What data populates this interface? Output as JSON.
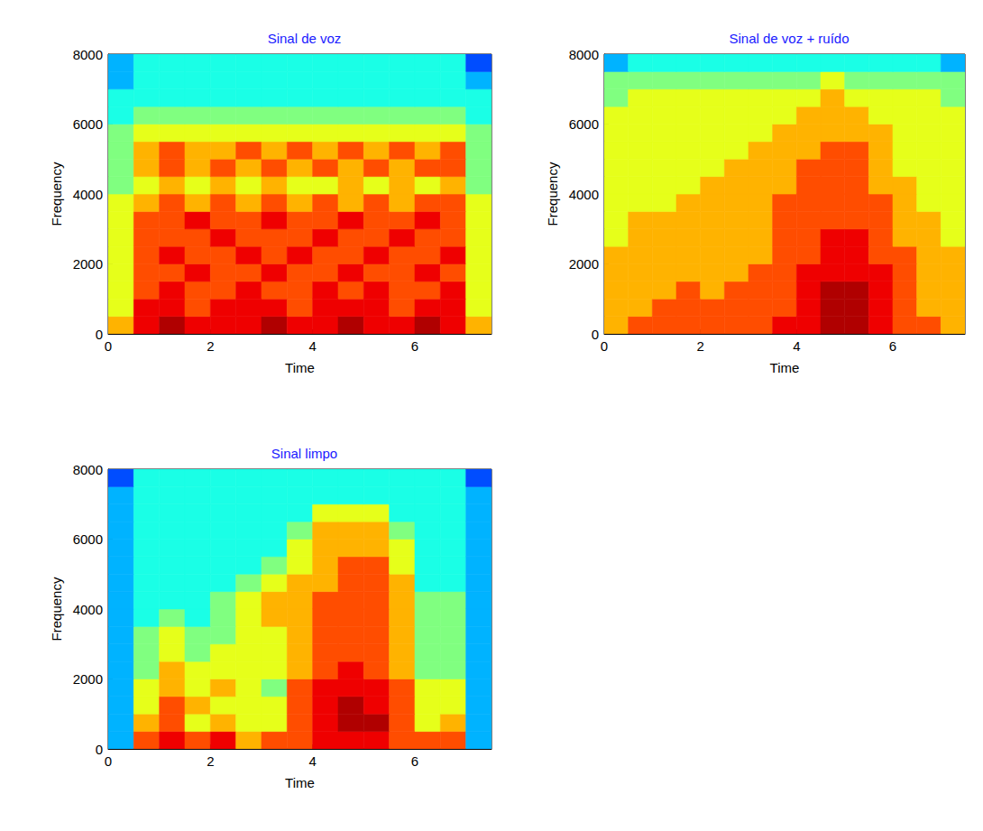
{
  "chart_data": [
    {
      "type": "heatmap",
      "title": "Sinal de voz",
      "xlabel": "Time",
      "ylabel": "Frequency",
      "xlim": [
        0,
        7.5
      ],
      "xticks": [
        0,
        2,
        4,
        6
      ],
      "ylim": [
        0,
        8000
      ],
      "yticks": [
        0,
        2000,
        4000,
        6000,
        8000
      ],
      "x_bins": [
        0,
        0.5,
        1,
        1.5,
        2,
        2.5,
        3,
        3.5,
        4,
        4.5,
        5,
        5.5,
        6,
        6.5,
        7,
        7.5
      ],
      "y_bins": [
        0,
        500,
        1000,
        1500,
        2000,
        2500,
        3000,
        3500,
        4000,
        4500,
        5000,
        5500,
        6000,
        6500,
        7000,
        7500,
        8000
      ],
      "color_range": [
        0,
        10
      ],
      "cells": [
        [
          7,
          9,
          10,
          9,
          9,
          9,
          10,
          9,
          9,
          10,
          9,
          9,
          10,
          9,
          7
        ],
        [
          6,
          9,
          9,
          8,
          9,
          9,
          9,
          8,
          9,
          9,
          9,
          8,
          9,
          9,
          6
        ],
        [
          6,
          8,
          9,
          8,
          8,
          9,
          8,
          8,
          9,
          8,
          9,
          8,
          8,
          9,
          6
        ],
        [
          6,
          8,
          8,
          9,
          8,
          8,
          9,
          8,
          8,
          9,
          8,
          8,
          9,
          8,
          6
        ],
        [
          6,
          8,
          9,
          8,
          8,
          9,
          8,
          9,
          8,
          8,
          9,
          8,
          8,
          9,
          6
        ],
        [
          6,
          8,
          8,
          8,
          9,
          8,
          8,
          8,
          9,
          8,
          8,
          9,
          8,
          8,
          6
        ],
        [
          6,
          8,
          8,
          9,
          8,
          8,
          9,
          8,
          8,
          9,
          8,
          8,
          9,
          8,
          6
        ],
        [
          6,
          7,
          8,
          7,
          8,
          7,
          8,
          7,
          8,
          7,
          8,
          7,
          8,
          8,
          6
        ],
        [
          5,
          6,
          7,
          6,
          7,
          6,
          7,
          6,
          6,
          7,
          6,
          7,
          6,
          7,
          5
        ],
        [
          5,
          7,
          8,
          7,
          8,
          7,
          8,
          7,
          8,
          7,
          8,
          7,
          8,
          8,
          5
        ],
        [
          5,
          7,
          8,
          7,
          7,
          8,
          7,
          8,
          7,
          8,
          7,
          8,
          7,
          8,
          5
        ],
        [
          5,
          6,
          6,
          6,
          6,
          6,
          6,
          6,
          6,
          6,
          6,
          6,
          6,
          6,
          5
        ],
        [
          4,
          5,
          5,
          5,
          5,
          5,
          5,
          5,
          5,
          5,
          5,
          5,
          5,
          5,
          4
        ],
        [
          4,
          4,
          4,
          4,
          4,
          4,
          4,
          4,
          4,
          4,
          4,
          4,
          4,
          4,
          4
        ],
        [
          3,
          4,
          4,
          4,
          4,
          4,
          4,
          4,
          4,
          4,
          4,
          4,
          4,
          4,
          3
        ],
        [
          3,
          4,
          4,
          4,
          4,
          4,
          4,
          4,
          4,
          4,
          4,
          4,
          4,
          4,
          2
        ]
      ]
    },
    {
      "type": "heatmap",
      "title": "Sinal de voz + ruído",
      "xlabel": "Time",
      "ylabel": "Frequency",
      "xlim": [
        0,
        7.5
      ],
      "xticks": [
        0,
        2,
        4,
        6
      ],
      "ylim": [
        0,
        8000
      ],
      "yticks": [
        0,
        2000,
        4000,
        6000,
        8000
      ],
      "x_bins": [
        0,
        0.5,
        1,
        1.5,
        2,
        2.5,
        3,
        3.5,
        4,
        4.5,
        5,
        5.5,
        6,
        6.5,
        7,
        7.5
      ],
      "y_bins": [
        0,
        500,
        1000,
        1500,
        2000,
        2500,
        3000,
        3500,
        4000,
        4500,
        5000,
        5500,
        6000,
        6500,
        7000,
        7500,
        8000
      ],
      "color_range": [
        0,
        10
      ],
      "cells": [
        [
          7,
          8,
          8,
          8,
          8,
          8,
          8,
          9,
          9,
          10,
          10,
          9,
          8,
          8,
          7
        ],
        [
          7,
          7,
          8,
          8,
          8,
          8,
          8,
          8,
          9,
          10,
          10,
          9,
          8,
          7,
          7
        ],
        [
          7,
          7,
          7,
          8,
          7,
          8,
          8,
          8,
          9,
          10,
          10,
          9,
          8,
          7,
          7
        ],
        [
          7,
          7,
          7,
          7,
          7,
          7,
          8,
          8,
          9,
          9,
          9,
          9,
          8,
          7,
          7
        ],
        [
          7,
          7,
          7,
          7,
          7,
          7,
          7,
          8,
          8,
          9,
          9,
          8,
          8,
          7,
          7
        ],
        [
          6,
          7,
          7,
          7,
          7,
          7,
          7,
          8,
          8,
          9,
          9,
          8,
          7,
          7,
          6
        ],
        [
          6,
          7,
          7,
          7,
          7,
          7,
          7,
          8,
          8,
          8,
          8,
          8,
          7,
          7,
          6
        ],
        [
          6,
          6,
          6,
          7,
          7,
          7,
          7,
          8,
          8,
          8,
          8,
          8,
          7,
          6,
          6
        ],
        [
          6,
          6,
          6,
          6,
          7,
          7,
          7,
          7,
          8,
          8,
          8,
          7,
          7,
          6,
          6
        ],
        [
          6,
          6,
          6,
          6,
          6,
          7,
          7,
          7,
          8,
          8,
          8,
          7,
          6,
          6,
          6
        ],
        [
          6,
          6,
          6,
          6,
          6,
          6,
          7,
          7,
          7,
          8,
          8,
          7,
          6,
          6,
          6
        ],
        [
          6,
          6,
          6,
          6,
          6,
          6,
          6,
          7,
          7,
          7,
          7,
          7,
          6,
          6,
          6
        ],
        [
          6,
          6,
          6,
          6,
          6,
          6,
          6,
          6,
          7,
          7,
          7,
          6,
          6,
          6,
          6
        ],
        [
          5,
          6,
          6,
          6,
          6,
          6,
          6,
          6,
          6,
          7,
          6,
          6,
          6,
          6,
          5
        ],
        [
          5,
          5,
          5,
          5,
          5,
          5,
          5,
          5,
          5,
          6,
          5,
          5,
          5,
          5,
          5
        ],
        [
          3,
          4,
          4,
          4,
          4,
          4,
          4,
          4,
          4,
          4,
          4,
          4,
          4,
          4,
          3
        ]
      ]
    },
    {
      "type": "heatmap",
      "title": "Sinal limpo",
      "xlabel": "Time",
      "ylabel": "Frequency",
      "xlim": [
        0,
        7.5
      ],
      "xticks": [
        0,
        2,
        4,
        6
      ],
      "ylim": [
        0,
        8000
      ],
      "yticks": [
        0,
        2000,
        4000,
        6000,
        8000
      ],
      "x_bins": [
        0,
        0.5,
        1,
        1.5,
        2,
        2.5,
        3,
        3.5,
        4,
        4.5,
        5,
        5.5,
        6,
        6.5,
        7,
        7.5
      ],
      "y_bins": [
        0,
        500,
        1000,
        1500,
        2000,
        2500,
        3000,
        3500,
        4000,
        4500,
        5000,
        5500,
        6000,
        6500,
        7000,
        7500,
        8000
      ],
      "color_range": [
        0,
        10
      ],
      "cells": [
        [
          3,
          8,
          9,
          8,
          9,
          7,
          8,
          8,
          9,
          9,
          9,
          8,
          8,
          8,
          3
        ],
        [
          3,
          7,
          8,
          6,
          7,
          6,
          6,
          8,
          9,
          10,
          10,
          8,
          6,
          7,
          3
        ],
        [
          3,
          6,
          8,
          7,
          6,
          6,
          6,
          8,
          9,
          10,
          9,
          8,
          6,
          6,
          3
        ],
        [
          3,
          6,
          7,
          6,
          7,
          6,
          5,
          8,
          9,
          9,
          9,
          8,
          6,
          6,
          3
        ],
        [
          3,
          5,
          7,
          6,
          6,
          6,
          6,
          7,
          8,
          9,
          8,
          7,
          5,
          5,
          3
        ],
        [
          3,
          5,
          6,
          5,
          6,
          6,
          6,
          7,
          8,
          8,
          8,
          7,
          5,
          5,
          3
        ],
        [
          3,
          5,
          6,
          5,
          5,
          6,
          6,
          7,
          8,
          8,
          8,
          7,
          5,
          5,
          3
        ],
        [
          3,
          4,
          5,
          4,
          5,
          6,
          7,
          7,
          8,
          8,
          8,
          7,
          5,
          5,
          3
        ],
        [
          3,
          4,
          4,
          4,
          5,
          6,
          7,
          7,
          8,
          8,
          8,
          7,
          5,
          5,
          3
        ],
        [
          3,
          4,
          4,
          4,
          4,
          5,
          6,
          7,
          7,
          8,
          8,
          7,
          4,
          4,
          3
        ],
        [
          3,
          4,
          4,
          4,
          4,
          4,
          5,
          6,
          7,
          8,
          8,
          6,
          4,
          4,
          3
        ],
        [
          3,
          4,
          4,
          4,
          4,
          4,
          4,
          6,
          7,
          7,
          7,
          6,
          4,
          4,
          3
        ],
        [
          3,
          4,
          4,
          4,
          4,
          4,
          4,
          5,
          7,
          7,
          7,
          5,
          4,
          4,
          3
        ],
        [
          3,
          4,
          4,
          4,
          4,
          4,
          4,
          4,
          6,
          6,
          6,
          4,
          4,
          4,
          3
        ],
        [
          3,
          4,
          4,
          4,
          4,
          4,
          4,
          4,
          4,
          4,
          4,
          4,
          4,
          4,
          3
        ],
        [
          2,
          4,
          4,
          4,
          4,
          4,
          4,
          4,
          4,
          4,
          4,
          4,
          4,
          4,
          2
        ]
      ]
    }
  ]
}
